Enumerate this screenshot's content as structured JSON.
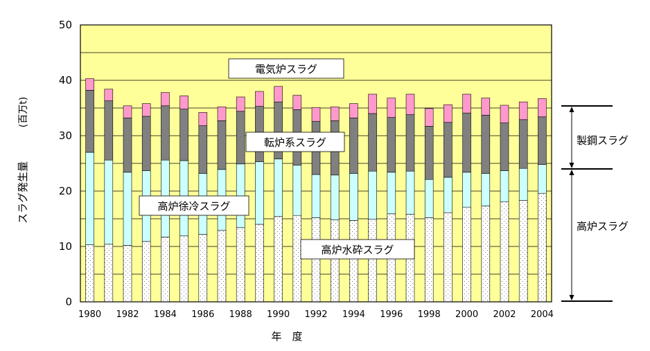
{
  "chart_data": {
    "type": "bar",
    "stacked": true,
    "xlabel": "年　度",
    "ylabel": "スラグ発生量",
    "ylabel_unit": "(百万t)",
    "ylim": [
      0,
      50
    ],
    "yticks": [
      0,
      10,
      20,
      30,
      40,
      50
    ],
    "grid": true,
    "plot_background": "#FFFF99",
    "categories": [
      "1980",
      "1981",
      "1982",
      "1983",
      "1984",
      "1985",
      "1986",
      "1987",
      "1988",
      "1989",
      "1990",
      "1991",
      "1992",
      "1993",
      "1994",
      "1995",
      "1996",
      "1997",
      "1998",
      "1999",
      "2000",
      "2001",
      "2002",
      "2003",
      "2004"
    ],
    "x_tick_labels": [
      "1980",
      "1982",
      "1984",
      "1986",
      "1988",
      "1990",
      "1992",
      "1994",
      "1996",
      "1998",
      "2000",
      "2002",
      "2004"
    ],
    "series": [
      {
        "name": "高炉水砕スラグ",
        "color": "#FFFFFF",
        "pattern": "dots",
        "values": [
          10.3,
          10.4,
          10.2,
          10.9,
          11.7,
          11.9,
          12.2,
          12.9,
          13.4,
          14.0,
          15.4,
          15.6,
          15.2,
          14.8,
          14.7,
          14.9,
          15.9,
          15.8,
          15.2,
          16.1,
          17.1,
          17.3,
          18.1,
          18.3,
          19.6
        ]
      },
      {
        "name": "高炉徐冷スラグ",
        "color": "#CCFFFF",
        "values": [
          16.7,
          15.2,
          13.2,
          12.8,
          13.9,
          13.6,
          11.0,
          11.0,
          11.5,
          11.3,
          10.4,
          9.1,
          7.8,
          8.1,
          8.5,
          8.7,
          7.5,
          7.8,
          6.9,
          6.4,
          6.3,
          5.9,
          5.6,
          5.8,
          5.2
        ]
      },
      {
        "name": "転炉系スラグ",
        "color": "#808080",
        "values": [
          11.2,
          10.7,
          9.8,
          9.8,
          9.8,
          9.3,
          8.6,
          8.8,
          9.5,
          10.0,
          10.3,
          10.0,
          9.6,
          9.8,
          10.0,
          10.4,
          9.9,
          10.2,
          9.6,
          9.9,
          10.7,
          10.5,
          8.6,
          8.8,
          8.6
        ]
      },
      {
        "name": "電気炉スラグ",
        "color": "#FF99CC",
        "values": [
          2.1,
          2.1,
          2.2,
          2.3,
          2.4,
          2.4,
          2.4,
          2.5,
          2.6,
          2.7,
          2.8,
          2.6,
          2.5,
          2.5,
          2.6,
          3.5,
          3.5,
          3.7,
          3.2,
          3.2,
          3.4,
          3.1,
          3.2,
          3.2,
          3.3
        ]
      }
    ],
    "series_labels": [
      {
        "series": "電気炉スラグ",
        "text": "電気炉スラグ"
      },
      {
        "series": "転炉系スラグ",
        "text": "転炉系スラグ"
      },
      {
        "series": "高炉徐冷スラグ",
        "text": "高炉徐冷スラグ"
      },
      {
        "series": "高炉水砕スラグ",
        "text": "高炉水砕スラグ"
      }
    ],
    "brackets": [
      {
        "label": "製鋼スラグ",
        "from": 24,
        "to": 35.2
      },
      {
        "label": "高炉スラグ",
        "from": 0,
        "to": 24
      }
    ]
  }
}
